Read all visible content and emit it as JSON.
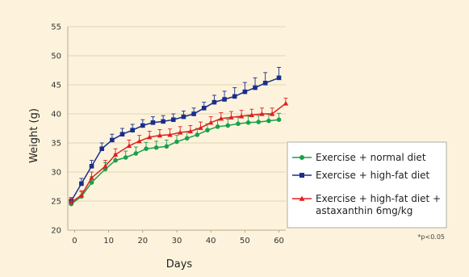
{
  "chart_data": {
    "type": "line",
    "xlabel": "Days",
    "ylabel": "Weight (g)",
    "xlim": [
      -2,
      62
    ],
    "ylim": [
      20,
      55
    ],
    "xticks": [
      0,
      10,
      20,
      30,
      40,
      50,
      60
    ],
    "yticks": [
      20,
      25,
      30,
      35,
      40,
      45,
      50,
      55
    ],
    "grid": "horizontal",
    "legend_position": "right",
    "note": "*p<0.05",
    "series": [
      {
        "name": "Exercise + normal diet",
        "color": "#1aa04a",
        "marker": "circle",
        "x": [
          -1,
          2,
          5,
          9,
          12,
          15,
          18,
          21,
          24,
          27,
          30,
          33,
          36,
          39,
          42,
          45,
          48,
          51,
          54,
          57,
          60
        ],
        "y": [
          24.5,
          25.8,
          28.2,
          30.5,
          32.0,
          32.5,
          33.2,
          34.0,
          34.2,
          34.4,
          35.2,
          35.8,
          36.4,
          37.2,
          37.8,
          38.0,
          38.3,
          38.5,
          38.6,
          38.8,
          39.0
        ],
        "err": [
          0.6,
          0.8,
          1.0,
          1.1,
          1.1,
          1.1,
          1.1,
          1.1,
          1.1,
          1.1,
          1.1,
          1.1,
          1.1,
          1.1,
          1.1,
          1.1,
          1.1,
          1.1,
          1.1,
          1.1,
          1.1
        ]
      },
      {
        "name": "Exercise + high-fat diet",
        "color": "#1a2e8c",
        "marker": "square",
        "x": [
          -1,
          2,
          5,
          8,
          11,
          14,
          17,
          20,
          23,
          26,
          29,
          32,
          35,
          38,
          41,
          44,
          47,
          50,
          53,
          56,
          60
        ],
        "y": [
          25.0,
          28.0,
          31.0,
          34.0,
          35.5,
          36.5,
          37.2,
          38.0,
          38.5,
          38.7,
          39.0,
          39.5,
          40.0,
          41.0,
          42.0,
          42.5,
          43.0,
          43.8,
          44.5,
          45.3,
          46.2
        ],
        "err": [
          0.6,
          0.9,
          1.0,
          1.0,
          1.0,
          1.0,
          1.0,
          1.0,
          1.0,
          1.0,
          1.0,
          1.0,
          1.0,
          1.0,
          1.2,
          1.4,
          1.5,
          1.6,
          1.7,
          1.8,
          1.8
        ]
      },
      {
        "name": "Exercise + high-fat diet + astaxanthin 6mg/kg",
        "legend_lines": [
          "Exercise + high-fat diet +",
          "astaxanthin 6mg/kg"
        ],
        "color": "#e02020",
        "marker": "triangle",
        "x": [
          -1,
          2,
          5,
          9,
          12,
          16,
          19,
          22,
          25,
          28,
          31,
          34,
          37,
          40,
          43,
          46,
          49,
          52,
          55,
          58,
          62
        ],
        "y": [
          24.8,
          26.0,
          29.0,
          31.0,
          33.0,
          34.5,
          35.3,
          36.0,
          36.3,
          36.4,
          36.8,
          37.0,
          37.6,
          38.5,
          39.2,
          39.4,
          39.6,
          39.8,
          40.0,
          40.0,
          41.8
        ],
        "err": [
          0.6,
          0.8,
          1.0,
          1.0,
          1.0,
          1.0,
          1.0,
          1.0,
          1.0,
          1.0,
          1.0,
          1.0,
          1.0,
          1.0,
          1.0,
          1.0,
          1.0,
          1.0,
          1.0,
          1.0,
          0.9
        ]
      }
    ]
  }
}
